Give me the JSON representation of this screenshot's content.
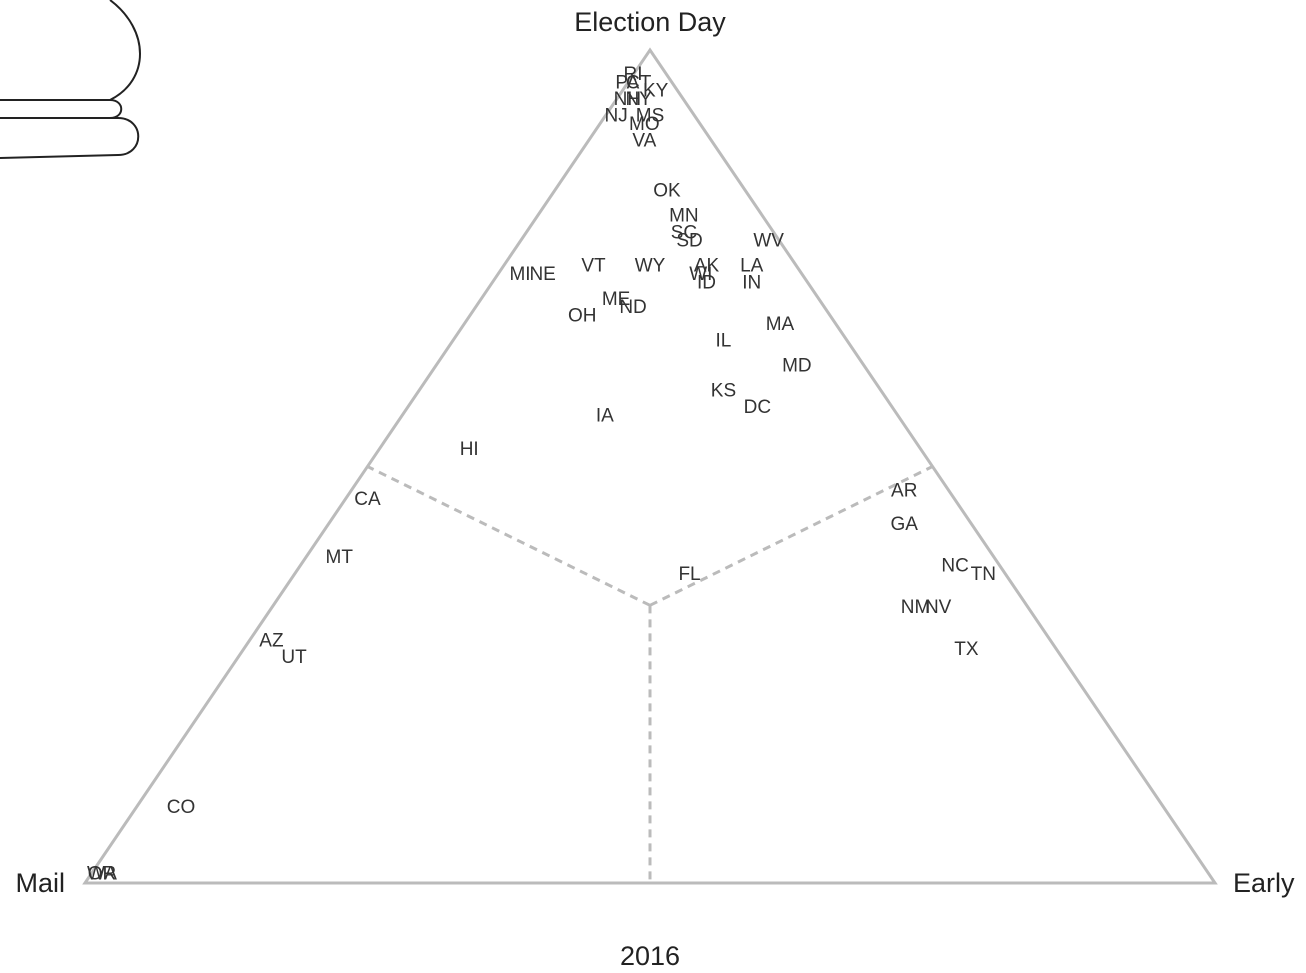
{
  "chart_data": {
    "type": "ternary",
    "title": "2016",
    "categories": [
      "PA",
      "CT",
      "RI",
      "NY",
      "KY",
      "NH",
      "NJ",
      "MS",
      "MO",
      "VA",
      "OK",
      "MN",
      "SC",
      "SD",
      "WV",
      "AK",
      "LA",
      "WI",
      "ID",
      "IN",
      "VT",
      "WY",
      "MI",
      "NE",
      "ME",
      "ND",
      "OH",
      "IL",
      "MA",
      "MD",
      "KS",
      "DC",
      "IA",
      "HI",
      "AR",
      "CA",
      "GA",
      "FL",
      "NC",
      "TN",
      "MT",
      "NM",
      "NV",
      "TX",
      "AZ",
      "UT",
      "CO",
      "OR",
      "WA"
    ],
    "series": [
      {
        "name": "Mail",
        "values": [
          4,
          3,
          3,
          4,
          2,
          5,
          7,
          4,
          5,
          6,
          7,
          7,
          8,
          8,
          1,
          8,
          4,
          9,
          9,
          5,
          18,
          13,
          25,
          23,
          18,
          17,
          22,
          11,
          5,
          6,
          14,
          12,
          26,
          40,
          4,
          52,
          6,
          28,
          4,
          2,
          58,
          10,
          8,
          8,
          69,
          68,
          87,
          98,
          98
        ]
      },
      {
        "name": "Early",
        "values": [
          0,
          1,
          0,
          2,
          3,
          1,
          1,
          4,
          4,
          5,
          10,
          13,
          14,
          15,
          22,
          18,
          22,
          18,
          19,
          23,
          8,
          13,
          2,
          4,
          12,
          14,
          10,
          24,
          28,
          32,
          27,
          31,
          18,
          8,
          49,
          2,
          51,
          35,
          58,
          61,
          3,
          57,
          59,
          64,
          2,
          5,
          4,
          1,
          1
        ]
      },
      {
        "name": "Election Day",
        "values": [
          96,
          96,
          97,
          94,
          95,
          94,
          92,
          92,
          91,
          89,
          83,
          80,
          78,
          77,
          77,
          74,
          74,
          73,
          72,
          72,
          74,
          74,
          73,
          73,
          70,
          69,
          68,
          65,
          67,
          62,
          59,
          57,
          56,
          52,
          47,
          46,
          43,
          37,
          38,
          37,
          39,
          33,
          33,
          28,
          29,
          27,
          9,
          1,
          1
        ]
      }
    ]
  }
}
